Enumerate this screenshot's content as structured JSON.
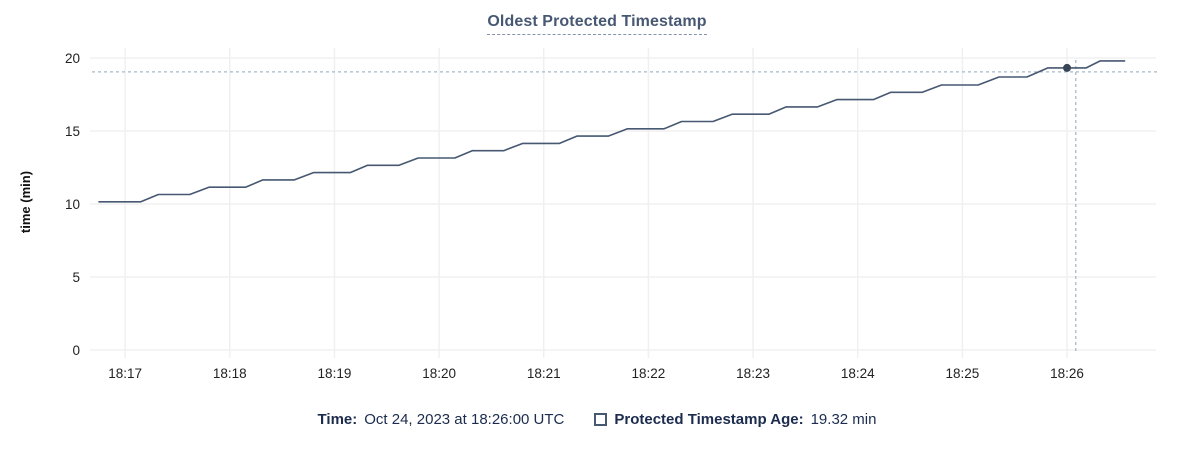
{
  "chart_data": {
    "type": "line",
    "title": "Oldest Protected Timestamp",
    "xlabel": "",
    "ylabel": "time (min)",
    "x_ticks": [
      "18:17",
      "18:18",
      "18:19",
      "18:20",
      "18:21",
      "18:22",
      "18:23",
      "18:24",
      "18:25",
      "18:26"
    ],
    "y_ticks": [
      0,
      5,
      10,
      15,
      20
    ],
    "xlim": [
      "18:16:41",
      "18:26:51"
    ],
    "ylim": [
      0,
      20.7
    ],
    "grid": true,
    "legend_position": "bottom",
    "series": [
      {
        "name": "Protected Timestamp Age",
        "color": "#475872",
        "points": [
          [
            "18:16:45",
            10.15
          ],
          [
            "18:17:09",
            10.15
          ],
          [
            "18:17:19",
            10.65
          ],
          [
            "18:17:37",
            10.65
          ],
          [
            "18:17:48",
            11.15
          ],
          [
            "18:18:09",
            11.15
          ],
          [
            "18:18:19",
            11.65
          ],
          [
            "18:18:37",
            11.65
          ],
          [
            "18:18:48",
            12.15
          ],
          [
            "18:19:09",
            12.15
          ],
          [
            "18:19:19",
            12.65
          ],
          [
            "18:19:37",
            12.65
          ],
          [
            "18:19:48",
            13.15
          ],
          [
            "18:20:09",
            13.15
          ],
          [
            "18:20:19",
            13.65
          ],
          [
            "18:20:37",
            13.65
          ],
          [
            "18:20:48",
            14.15
          ],
          [
            "18:21:09",
            14.15
          ],
          [
            "18:21:19",
            14.65
          ],
          [
            "18:21:37",
            14.65
          ],
          [
            "18:21:48",
            15.15
          ],
          [
            "18:22:09",
            15.15
          ],
          [
            "18:22:19",
            15.65
          ],
          [
            "18:22:37",
            15.65
          ],
          [
            "18:22:48",
            16.15
          ],
          [
            "18:23:09",
            16.15
          ],
          [
            "18:23:19",
            16.65
          ],
          [
            "18:23:37",
            16.65
          ],
          [
            "18:23:48",
            17.15
          ],
          [
            "18:24:09",
            17.15
          ],
          [
            "18:24:19",
            17.65
          ],
          [
            "18:24:37",
            17.65
          ],
          [
            "18:24:48",
            18.15
          ],
          [
            "18:25:09",
            18.15
          ],
          [
            "18:25:21",
            18.7
          ],
          [
            "18:25:37",
            18.7
          ],
          [
            "18:25:49",
            19.32
          ],
          [
            "18:26:11",
            19.32
          ],
          [
            "18:26:19",
            19.8
          ],
          [
            "18:26:33",
            19.8
          ]
        ]
      }
    ],
    "crosshair": {
      "x_time": "18:26:05",
      "point_time": "18:26:00",
      "point_value": 19.32,
      "h_line_value": 19.05
    }
  },
  "colors": {
    "title": "#475872",
    "series_line": "#475872",
    "hover_dot": "#394455",
    "crosshair": "#a6bac7",
    "grid": "#f0f0f0",
    "footer_text": "#1c2c4e"
  },
  "footer": {
    "time_label": "Time:",
    "time_value": "Oct 24, 2023 at 18:26:00 UTC",
    "age_label": "Protected Timestamp Age:",
    "age_value": "19.32 min"
  }
}
